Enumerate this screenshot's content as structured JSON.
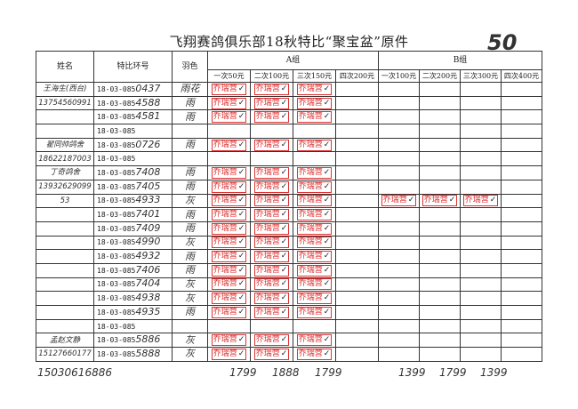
{
  "title": "飞翔赛鸽俱乐部18秋特比“聚宝盆”原件",
  "page_number": "50",
  "headers": {
    "name": "姓名",
    "ring": "特比环号",
    "color": "羽色",
    "group_a": "A组",
    "group_b": "B组",
    "a_cols": [
      "一次50元",
      "二次100元",
      "三次150元",
      "四次200元"
    ],
    "b_cols": [
      "一次100元",
      "二次200元",
      "三次300元",
      "四次400元"
    ]
  },
  "stamp_text": "乔瑞营",
  "stamp_color": "#d33333",
  "rows": [
    {
      "name": "王海生(西台)",
      "ring": "18-03-085",
      "ring_hw": "0437",
      "color": "雨花",
      "a": [
        1,
        1,
        1,
        0
      ],
      "b": [
        0,
        0,
        0,
        0
      ]
    },
    {
      "name": "13754560991",
      "ring": "18-03-085",
      "ring_hw": "4588",
      "color": "雨",
      "a": [
        1,
        1,
        1,
        0
      ],
      "b": [
        0,
        0,
        0,
        0
      ]
    },
    {
      "name": "",
      "ring": "18-03-085",
      "ring_hw": "4581",
      "color": "雨",
      "a": [
        1,
        1,
        1,
        0
      ],
      "b": [
        0,
        0,
        0,
        0
      ]
    },
    {
      "name": "",
      "ring": "18-03-085",
      "ring_hw": "",
      "color": "",
      "a": [
        0,
        0,
        0,
        0
      ],
      "b": [
        0,
        0,
        0,
        0
      ]
    },
    {
      "name": "翟同帅鸽舍",
      "ring": "18-03-085",
      "ring_hw": "0726",
      "color": "雨",
      "a": [
        1,
        1,
        1,
        0
      ],
      "b": [
        0,
        0,
        0,
        0
      ]
    },
    {
      "name": "18622187003",
      "ring": "18-03-085",
      "ring_hw": "",
      "color": "",
      "a": [
        0,
        0,
        0,
        0
      ],
      "b": [
        0,
        0,
        0,
        0
      ]
    },
    {
      "name": "丁奇鸽舍",
      "ring": "18-03-085",
      "ring_hw": "7408",
      "color": "雨",
      "a": [
        1,
        1,
        1,
        0
      ],
      "b": [
        0,
        0,
        0,
        0
      ]
    },
    {
      "name": "13932629099",
      "ring": "18-03-085",
      "ring_hw": "7405",
      "color": "雨",
      "a": [
        1,
        1,
        1,
        0
      ],
      "b": [
        0,
        0,
        0,
        0
      ]
    },
    {
      "name": "53",
      "ring": "18-03-085",
      "ring_hw": "4933",
      "color": "灰",
      "a": [
        1,
        1,
        1,
        0
      ],
      "b": [
        1,
        1,
        1,
        0
      ]
    },
    {
      "name": "",
      "ring": "18-03-085",
      "ring_hw": "7401",
      "color": "雨",
      "a": [
        1,
        1,
        1,
        0
      ],
      "b": [
        0,
        0,
        0,
        0
      ]
    },
    {
      "name": "",
      "ring": "18-03-085",
      "ring_hw": "7409",
      "color": "雨",
      "a": [
        1,
        1,
        1,
        0
      ],
      "b": [
        0,
        0,
        0,
        0
      ]
    },
    {
      "name": "",
      "ring": "18-03-085",
      "ring_hw": "4990",
      "color": "灰",
      "a": [
        1,
        1,
        1,
        0
      ],
      "b": [
        0,
        0,
        0,
        0
      ]
    },
    {
      "name": "",
      "ring": "18-03-085",
      "ring_hw": "4932",
      "color": "雨",
      "a": [
        1,
        1,
        1,
        0
      ],
      "b": [
        0,
        0,
        0,
        0
      ]
    },
    {
      "name": "",
      "ring": "18-03-085",
      "ring_hw": "7406",
      "color": "雨",
      "a": [
        1,
        1,
        1,
        0
      ],
      "b": [
        0,
        0,
        0,
        0
      ]
    },
    {
      "name": "",
      "ring": "18-03-085",
      "ring_hw": "7404",
      "color": "灰",
      "a": [
        1,
        1,
        1,
        0
      ],
      "b": [
        0,
        0,
        0,
        0
      ]
    },
    {
      "name": "",
      "ring": "18-03-085",
      "ring_hw": "4938",
      "color": "灰",
      "a": [
        1,
        1,
        1,
        0
      ],
      "b": [
        0,
        0,
        0,
        0
      ]
    },
    {
      "name": "",
      "ring": "18-03-085",
      "ring_hw": "4935",
      "color": "雨",
      "a": [
        1,
        1,
        1,
        0
      ],
      "b": [
        0,
        0,
        0,
        0
      ]
    },
    {
      "name": "",
      "ring": "18-03-085",
      "ring_hw": "",
      "color": "",
      "a": [
        0,
        0,
        0,
        0
      ],
      "b": [
        0,
        0,
        0,
        0
      ]
    },
    {
      "name": "孟赵文静",
      "ring": "18-03-085",
      "ring_hw": "5886",
      "color": "灰",
      "a": [
        1,
        1,
        1,
        0
      ],
      "b": [
        0,
        0,
        0,
        0
      ]
    },
    {
      "name": "15127660177",
      "ring": "18-03-085",
      "ring_hw": "5888",
      "color": "灰",
      "a": [
        1,
        1,
        1,
        0
      ],
      "b": [
        0,
        0,
        0,
        0
      ]
    }
  ],
  "footer_phone": "15030616886",
  "totals_a": [
    "1799",
    "1888",
    "1799"
  ],
  "totals_b": [
    "1399",
    "1799",
    "1399"
  ]
}
